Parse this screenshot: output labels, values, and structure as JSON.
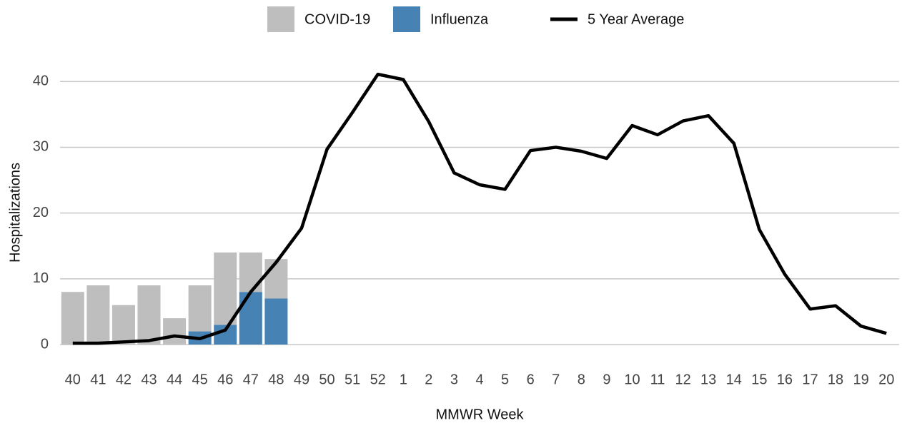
{
  "chart_data": {
    "type": "bar",
    "x_label": "MMWR Week",
    "y_label": "Hospitalizations",
    "categories": [
      "40",
      "41",
      "42",
      "43",
      "44",
      "45",
      "46",
      "47",
      "48",
      "49",
      "50",
      "51",
      "52",
      "1",
      "2",
      "3",
      "4",
      "5",
      "6",
      "7",
      "8",
      "9",
      "10",
      "11",
      "12",
      "13",
      "14",
      "15",
      "16",
      "17",
      "18",
      "19",
      "20"
    ],
    "series": [
      {
        "name": "COVID-19",
        "type": "bar",
        "color": "#bebebe",
        "values": [
          8,
          9,
          6,
          9,
          4,
          7,
          11,
          6,
          6,
          null,
          null,
          null,
          null,
          null,
          null,
          null,
          null,
          null,
          null,
          null,
          null,
          null,
          null,
          null,
          null,
          null,
          null,
          null,
          null,
          null,
          null,
          null,
          null
        ]
      },
      {
        "name": "Influenza",
        "type": "bar",
        "color": "#4682b4",
        "values": [
          0,
          0,
          0,
          0,
          0,
          2,
          3,
          8,
          7,
          null,
          null,
          null,
          null,
          null,
          null,
          null,
          null,
          null,
          null,
          null,
          null,
          null,
          null,
          null,
          null,
          null,
          null,
          null,
          null,
          null,
          null,
          null,
          null
        ]
      },
      {
        "name": "5 Year Average",
        "type": "line",
        "color": "#000000",
        "values": [
          0.2,
          0.2,
          0.4,
          0.6,
          1.3,
          0.9,
          2.2,
          8.0,
          12.5,
          17.7,
          29.7,
          35.3,
          41.1,
          40.3,
          33.9,
          26.1,
          24.3,
          23.6,
          29.5,
          30.0,
          29.4,
          28.3,
          33.3,
          31.9,
          34.0,
          34.8,
          30.6,
          17.5,
          10.7,
          5.4,
          5.9,
          2.8,
          1.7
        ]
      }
    ],
    "ylim": [
      0,
      43.5
    ],
    "yticks": [
      0,
      10,
      20,
      30,
      40
    ],
    "grid": true,
    "legend": "top"
  }
}
